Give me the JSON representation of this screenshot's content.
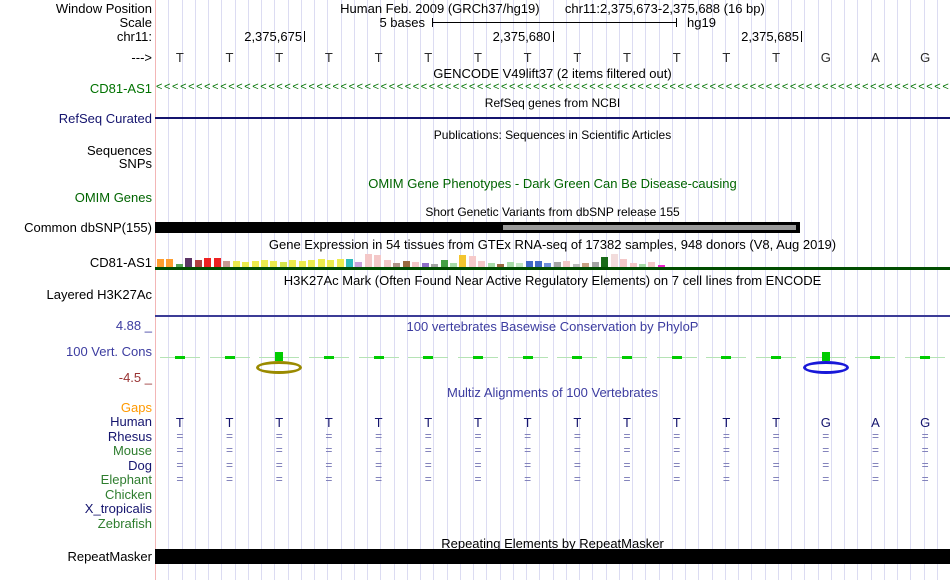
{
  "header": {
    "window_position_label": "Window Position",
    "assembly_title": "Human Feb. 2009 (GRCh37/hg19)",
    "position_title": "chr11:2,375,673-2,375,688 (16 bp)",
    "scale_label": "Scale",
    "scale_text": "5 bases",
    "assembly_short": "hg19",
    "chrom_label": "chr11:",
    "strand_label": "--->",
    "ruler_ticks": [
      {
        "label": "2,375,675",
        "boundary": 3
      },
      {
        "label": "2,375,680",
        "boundary": 8
      },
      {
        "label": "2,375,685",
        "boundary": 13
      }
    ],
    "sequence": [
      "T",
      "T",
      "T",
      "T",
      "T",
      "T",
      "T",
      "T",
      "T",
      "T",
      "T",
      "T",
      "T",
      "G",
      "A",
      "G"
    ]
  },
  "colors": {
    "gencode_green": "#007200",
    "refseq_navy": "#14146e",
    "omim_green": "#006400",
    "phylop_blue": "#3c3ca0",
    "phylop_min_red": "#993333",
    "gtex_gene_green": "#004d00",
    "cons_tick_green": "#00cc00",
    "cons_faint_green": "#b5e3b5",
    "align_mark": "#7474b4",
    "dbsnp_gray": "#999999"
  },
  "tracks": {
    "gencode": {
      "title": "GENCODE V49lift37 (2 items filtered out)",
      "gene_label": "CD81-AS1",
      "strand_char": "<"
    },
    "refseq": {
      "title": "RefSeq genes from NCBI",
      "label": "RefSeq Curated"
    },
    "publications": {
      "title": "Publications: Sequences in Scientific Articles",
      "label_sequences": "Sequences",
      "label_snps": "SNPs"
    },
    "omim": {
      "title": "OMIM Gene Phenotypes - Dark Green Can Be Disease-causing",
      "label": "OMIM Genes"
    },
    "dbsnp": {
      "title": "Short Genetic Variants from dbSNP release 155",
      "label": "Common dbSNP(155)"
    },
    "gtex": {
      "title": "Gene Expression in 54 tissues from GTEx RNA-seq of 17382 samples, 948 donors (V8, Aug 2019)",
      "label": "CD81-AS1",
      "bars": [
        {
          "color": "#ff9d2e",
          "h": 8
        },
        {
          "color": "#ff9d2e",
          "h": 8
        },
        {
          "color": "#54a354",
          "h": 3
        },
        {
          "color": "#5c3566",
          "h": 9
        },
        {
          "color": "#b04040",
          "h": 7
        },
        {
          "color": "#ee2222",
          "h": 9
        },
        {
          "color": "#ee2222",
          "h": 9
        },
        {
          "color": "#c79a92",
          "h": 6
        },
        {
          "color": "#ecec4d",
          "h": 6
        },
        {
          "color": "#ecec4d",
          "h": 5
        },
        {
          "color": "#ecec4d",
          "h": 6
        },
        {
          "color": "#ecec4d",
          "h": 7
        },
        {
          "color": "#ecec4d",
          "h": 6
        },
        {
          "color": "#d6e64d",
          "h": 5
        },
        {
          "color": "#ecec4d",
          "h": 7
        },
        {
          "color": "#ecec4d",
          "h": 6
        },
        {
          "color": "#ecec4d",
          "h": 7
        },
        {
          "color": "#ecec4d",
          "h": 8
        },
        {
          "color": "#ecec4d",
          "h": 7
        },
        {
          "color": "#ecec4d",
          "h": 8
        },
        {
          "color": "#2fbcbc",
          "h": 8
        },
        {
          "color": "#c9a0dc",
          "h": 5
        },
        {
          "color": "#f4c8c8",
          "h": 13
        },
        {
          "color": "#f4c8c8",
          "h": 12
        },
        {
          "color": "#f4c8c8",
          "h": 7
        },
        {
          "color": "#b09488",
          "h": 4
        },
        {
          "color": "#9a6a3f",
          "h": 6
        },
        {
          "color": "#f4c8c8",
          "h": 5
        },
        {
          "color": "#8f6fc8",
          "h": 4
        },
        {
          "color": "#a5a5a5",
          "h": 3
        },
        {
          "color": "#44a044",
          "h": 7
        },
        {
          "color": "#a8dca8",
          "h": 4
        },
        {
          "color": "#f3c52f",
          "h": 12
        },
        {
          "color": "#f6caca",
          "h": 11
        },
        {
          "color": "#f4c8c8",
          "h": 6
        },
        {
          "color": "#a8dca8",
          "h": 4
        },
        {
          "color": "#9a6a3f",
          "h": 3
        },
        {
          "color": "#a8dca8",
          "h": 5
        },
        {
          "color": "#c2e6c2",
          "h": 4
        },
        {
          "color": "#4169c8",
          "h": 6
        },
        {
          "color": "#4169c8",
          "h": 6
        },
        {
          "color": "#6f8fdc",
          "h": 4
        },
        {
          "color": "#a5a5a5",
          "h": 5
        },
        {
          "color": "#f4c8c8",
          "h": 6
        },
        {
          "color": "#bcbcbc",
          "h": 3
        },
        {
          "color": "#c8a284",
          "h": 4
        },
        {
          "color": "#a5a5a5",
          "h": 5
        },
        {
          "color": "#186a18",
          "h": 10
        },
        {
          "color": "#f2dcdc",
          "h": 13
        },
        {
          "color": "#f4c8c8",
          "h": 8
        },
        {
          "color": "#f4c8c8",
          "h": 4
        },
        {
          "color": "#a8dca8",
          "h": 3
        },
        {
          "color": "#f4c8c8",
          "h": 5
        },
        {
          "color": "#ee22cc",
          "h": 2
        }
      ]
    },
    "h3k27ac": {
      "title": "H3K27Ac Mark (Often Found Near Active Regulatory Elements) on 7 cell lines from ENCODE",
      "label": "Layered H3K27Ac"
    },
    "phylop": {
      "title": "100 vertebrates Basewise Conservation by PhyloP",
      "label": "100 Vert. Cons",
      "max_label": "4.88 _",
      "min_label": "-4.5 _",
      "marked_bases": [
        {
          "base_index": 2,
          "ellipse_color": "#9a8a00"
        },
        {
          "base_index": 13,
          "ellipse_color": "#1818d8"
        }
      ]
    },
    "multiz": {
      "title": "Multiz Alignments of 100 Vertebrates",
      "align_symbol": "=",
      "species": [
        {
          "name": "Gaps",
          "color": "#ff9900",
          "row": "empty"
        },
        {
          "name": "Human",
          "color": "#14146e",
          "row": "sequence"
        },
        {
          "name": "Rhesus",
          "color": "#14146e",
          "row": "align"
        },
        {
          "name": "Mouse",
          "color": "#2e7d2e",
          "row": "align"
        },
        {
          "name": "Dog",
          "color": "#14146e",
          "row": "align"
        },
        {
          "name": "Elephant",
          "color": "#2e7d2e",
          "row": "align"
        },
        {
          "name": "Chicken",
          "color": "#2e7d2e",
          "row": "empty"
        },
        {
          "name": "X_tropicalis",
          "color": "#14146e",
          "row": "empty"
        },
        {
          "name": "Zebrafish",
          "color": "#2e7d2e",
          "row": "empty"
        }
      ]
    },
    "repeatmasker": {
      "title": "Repeating Elements by RepeatMasker",
      "label": "RepeatMasker"
    }
  }
}
